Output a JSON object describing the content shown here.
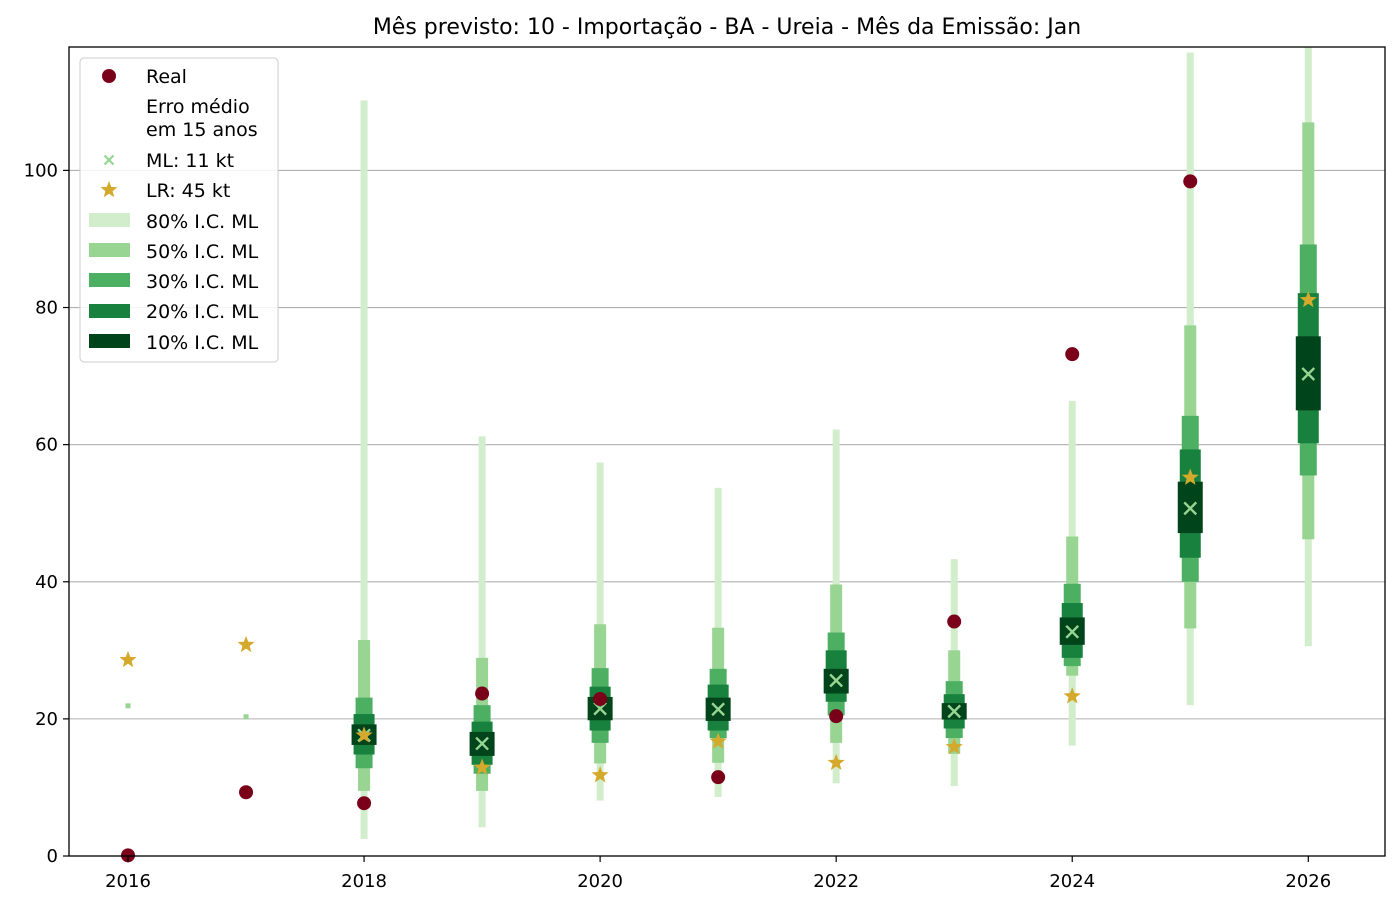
{
  "chart_data": {
    "type": "scatter",
    "title": "Mês previsto: 10 - Importação - BA - Ureia - Mês da Emissão: Jan",
    "xlabel": "",
    "ylabel": "",
    "xlim": [
      2015.5,
      2026.65
    ],
    "ylim": [
      0,
      118
    ],
    "x_ticks": [
      2016,
      2018,
      2020,
      2022,
      2024,
      2026
    ],
    "y_ticks": [
      0,
      20,
      40,
      60,
      80,
      100
    ],
    "grid": "horizontal",
    "legend_position": "top-left",
    "legend": {
      "real": "Real",
      "note_line1": "Erro médio",
      "note_line2": "em 15 anos",
      "ml": "ML: 11 kt",
      "lr": "LR: 45 kt",
      "ci80": "80% I.C. ML",
      "ci50": "50% I.C. ML",
      "ci30": "30% I.C. ML",
      "ci20": "20% I.C. ML",
      "ci10": "10% I.C. ML"
    },
    "colors": {
      "real": "#7a0019",
      "ml": "#98d492",
      "lr": "#d4a92c",
      "ci80": "#d1edcb",
      "ci50": "#98d492",
      "ci30": "#4caf62",
      "ci20": "#17813d",
      "ci10": "#00441b",
      "grid": "#b0b0b0"
    },
    "years": [
      2016,
      2017,
      2018,
      2019,
      2020,
      2021,
      2022,
      2023,
      2024,
      2025,
      2026
    ],
    "real": [
      0.1,
      9.3,
      7.7,
      23.7,
      22.9,
      11.5,
      20.4,
      34.2,
      73.2,
      98.4,
      null
    ],
    "lr": [
      28.6,
      30.8,
      17.6,
      12.9,
      11.8,
      16.7,
      13.6,
      15.9,
      23.3,
      55.2,
      81.1
    ],
    "ml": [
      21.9,
      20.3,
      17.6,
      16.4,
      21.5,
      21.4,
      25.6,
      21.1,
      32.7,
      50.7,
      70.3
    ],
    "ci80": [
      null,
      null,
      [
        2.5,
        110.2
      ],
      [
        4.2,
        61.2
      ],
      [
        8.1,
        57.4
      ],
      [
        8.6,
        53.7
      ],
      [
        10.6,
        62.2
      ],
      [
        10.2,
        43.3
      ],
      [
        16.1,
        66.4
      ],
      [
        22.0,
        117.2
      ],
      [
        30.6,
        118.5
      ]
    ],
    "ci50": [
      null,
      null,
      [
        9.5,
        31.5
      ],
      [
        9.5,
        28.9
      ],
      [
        13.5,
        33.8
      ],
      [
        13.6,
        33.3
      ],
      [
        16.5,
        39.6
      ],
      [
        14.9,
        30.0
      ],
      [
        26.3,
        46.6
      ],
      [
        33.2,
        77.4
      ],
      [
        46.2,
        107.0
      ]
    ],
    "ci30": [
      null,
      null,
      [
        12.8,
        23.1
      ],
      [
        12.0,
        22.0
      ],
      [
        16.5,
        27.4
      ],
      [
        17.2,
        27.3
      ],
      [
        20.5,
        32.6
      ],
      [
        17.2,
        25.5
      ],
      [
        27.7,
        39.7
      ],
      [
        40.0,
        64.2
      ],
      [
        55.5,
        89.2
      ]
    ],
    "ci20": [
      null,
      null,
      [
        14.8,
        20.7
      ],
      [
        13.3,
        19.6
      ],
      [
        18.3,
        24.7
      ],
      [
        18.3,
        25.0
      ],
      [
        22.5,
        30.0
      ],
      [
        18.6,
        23.6
      ],
      [
        28.9,
        36.9
      ],
      [
        43.5,
        59.3
      ],
      [
        60.2,
        82.1
      ]
    ],
    "ci10": [
      null,
      null,
      [
        16.2,
        19.2
      ],
      [
        14.6,
        18.1
      ],
      [
        19.8,
        23.2
      ],
      [
        19.7,
        23.1
      ],
      [
        23.7,
        27.3
      ],
      [
        19.9,
        22.3
      ],
      [
        30.8,
        34.8
      ],
      [
        47.1,
        54.6
      ],
      [
        65.0,
        75.8
      ]
    ]
  }
}
